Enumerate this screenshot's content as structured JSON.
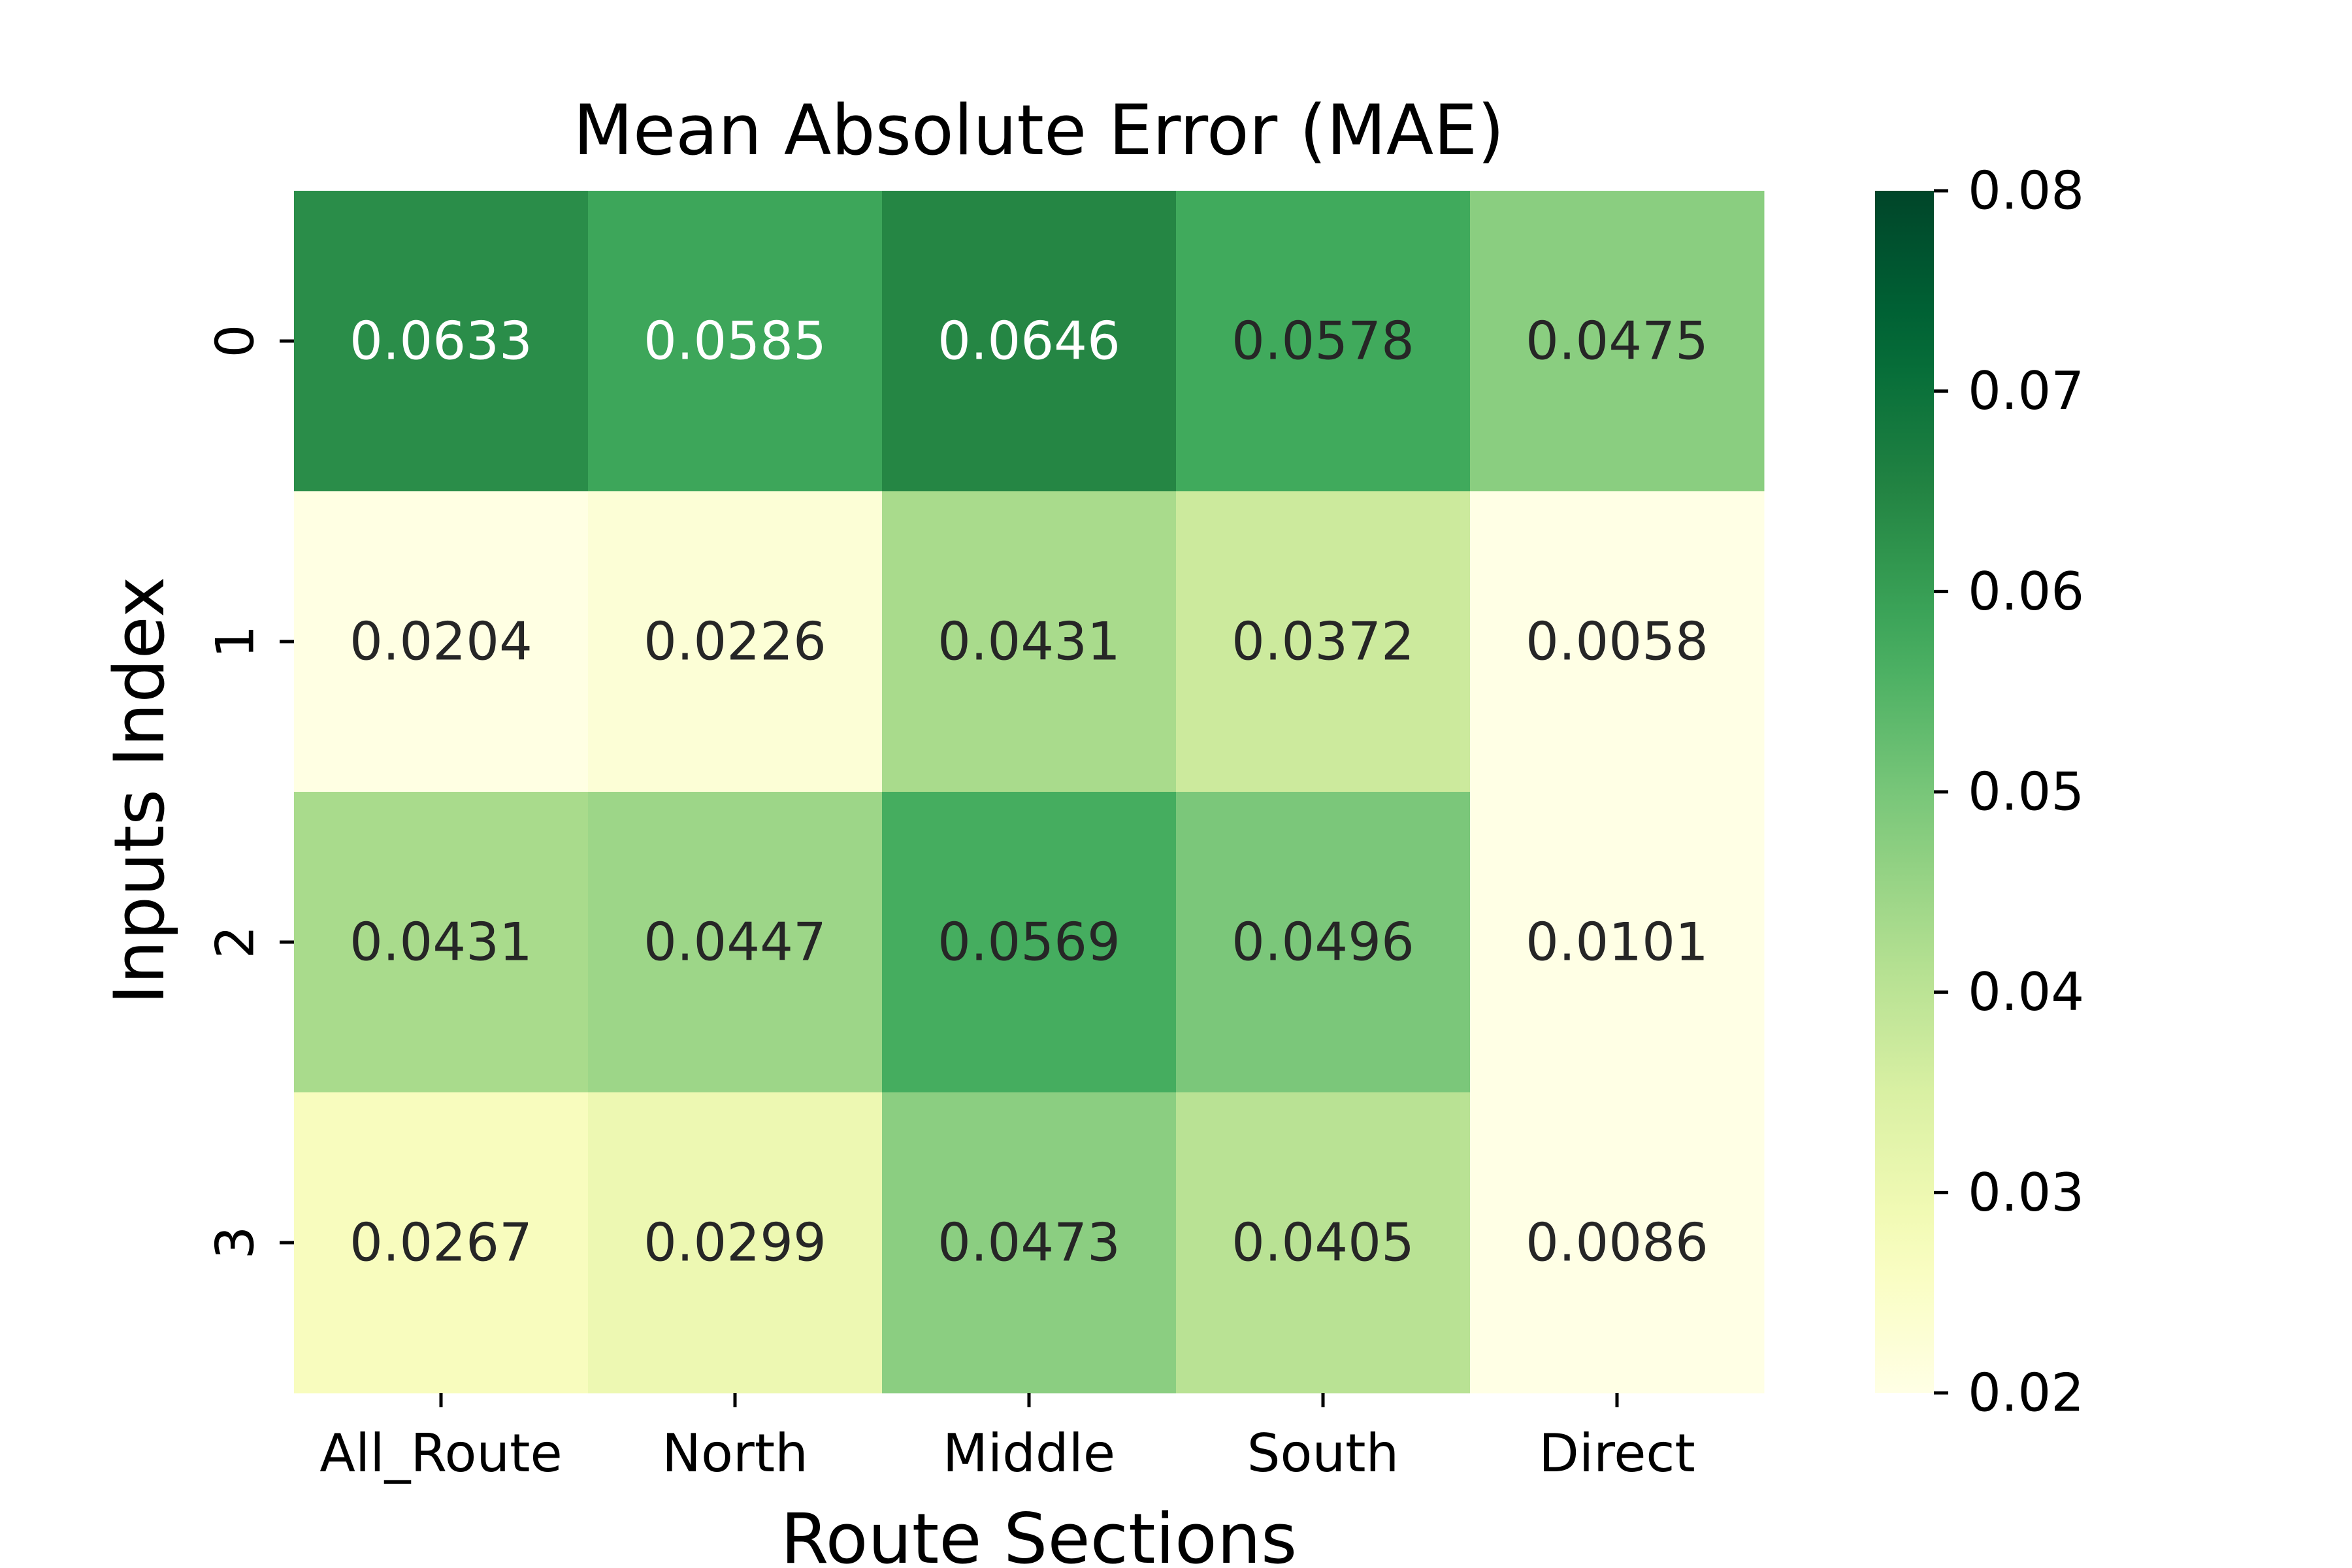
{
  "chart_data": {
    "type": "heatmap",
    "title": "Mean Absolute Error (MAE)",
    "xlabel": "Route Sections",
    "ylabel": "Inputs Index",
    "x_categories": [
      "All_Route",
      "North",
      "Middle",
      "South",
      "Direct"
    ],
    "y_categories": [
      "0",
      "1",
      "2",
      "3"
    ],
    "values": [
      [
        0.0633,
        0.0585,
        0.0646,
        0.0578,
        0.0475
      ],
      [
        0.0204,
        0.0226,
        0.0431,
        0.0372,
        0.0058
      ],
      [
        0.0431,
        0.0447,
        0.0569,
        0.0496,
        0.0101
      ],
      [
        0.0267,
        0.0299,
        0.0473,
        0.0405,
        0.0086
      ]
    ],
    "value_labels": [
      [
        "0.0633",
        "0.0585",
        "0.0646",
        "0.0578",
        "0.0475"
      ],
      [
        "0.0204",
        "0.0226",
        "0.0431",
        "0.0372",
        "0.0058"
      ],
      [
        "0.0431",
        "0.0447",
        "0.0569",
        "0.0496",
        "0.0101"
      ],
      [
        "0.0267",
        "0.0299",
        "0.0473",
        "0.0405",
        "0.0086"
      ]
    ],
    "colormap": "YlGn",
    "color_range": [
      0.02,
      0.08
    ],
    "colorbar": {
      "ticks": [
        0.02,
        0.03,
        0.04,
        0.05,
        0.06,
        0.07,
        0.08
      ],
      "tick_labels": [
        "0.02",
        "0.03",
        "0.04",
        "0.05",
        "0.06",
        "0.07",
        "0.08"
      ],
      "placement": "right"
    },
    "grid": false,
    "annotation_colors": {
      "light": "#ffffff",
      "dark": "#262626"
    }
  }
}
